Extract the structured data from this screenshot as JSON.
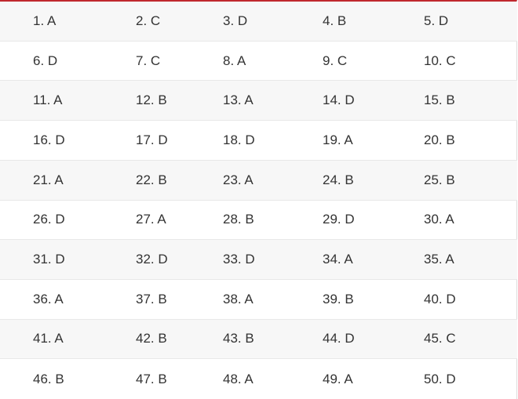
{
  "table": {
    "rows": [
      [
        "1. A",
        "2. C",
        "3. D",
        "4. B",
        "5. D"
      ],
      [
        "6. D",
        "7. C",
        "8. A",
        "9. C",
        "10. C"
      ],
      [
        "11. A",
        "12. B",
        "13. A",
        "14. D",
        "15. B"
      ],
      [
        "16. D",
        "17. D",
        "18. D",
        "19. A",
        "20. B"
      ],
      [
        "21. A",
        "22. B",
        "23. A",
        "24. B",
        "25. B"
      ],
      [
        "26. D",
        "27. A",
        "28. B",
        "29. D",
        "30. A"
      ],
      [
        "31. D",
        "32. D",
        "33. D",
        "34. A",
        "35. A"
      ],
      [
        "36. A",
        "37. B",
        "38. A",
        "39. B",
        "40. D"
      ],
      [
        "41. A",
        "42. B",
        "43. B",
        "44. D",
        "45. C"
      ],
      [
        "46. B",
        "47. B",
        "48. A",
        "49. A",
        "50. D"
      ]
    ]
  }
}
